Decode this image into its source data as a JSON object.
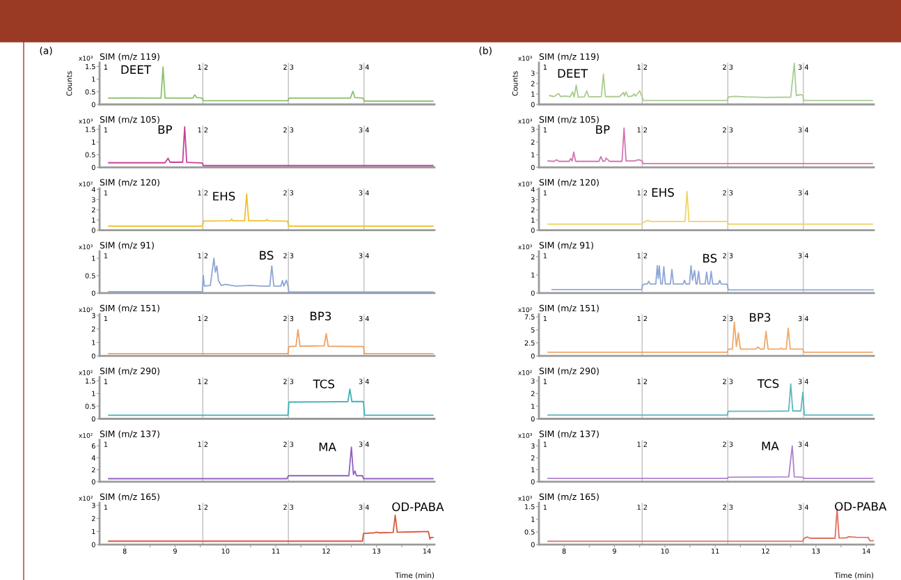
{
  "chart_data": [
    {
      "type": "line",
      "title": "SIM (m/z 119)",
      "ylabel": "Counts",
      "color": "#8cc06c",
      "xlim": [
        7.5,
        14.15
      ],
      "ylim": [
        0,
        1.65
      ],
      "yticks": [
        0,
        0.5,
        1,
        1.5
      ],
      "tick_labels": "y",
      "x": [
        7.68,
        8.0,
        8.72,
        8.76,
        8.8,
        9.35,
        9.39,
        9.43,
        9.54,
        9.56,
        11.24,
        11.26,
        12.48,
        12.53,
        12.57,
        12.73,
        12.76,
        14.12
      ],
      "values": [
        0.25,
        0.26,
        0.25,
        1.48,
        0.25,
        0.25,
        0.38,
        0.27,
        0.25,
        0.15,
        0.15,
        0.25,
        0.25,
        0.52,
        0.27,
        0.25,
        0.13,
        0.13
      ],
      "ref_lines": [
        {
          "axis": "x",
          "value": 9.55
        },
        {
          "axis": "x",
          "value": 11.25
        },
        {
          "axis": "x",
          "value": 12.75
        }
      ],
      "annotations": [
        "(a)",
        "x10³",
        "1",
        "1 2",
        "2 3",
        "3 4",
        "DEET"
      ]
    },
    {
      "type": "line",
      "title": "SIM (m/z 105)",
      "color": "#c8409a",
      "xlim": [
        7.5,
        14.15
      ],
      "ylim": [
        0,
        1.65
      ],
      "yticks": [
        0,
        0.5,
        1,
        1.5
      ],
      "tick_labels": "y",
      "x": [
        7.68,
        8.8,
        8.86,
        8.9,
        9.15,
        9.19,
        9.23,
        9.54,
        9.56,
        14.12
      ],
      "values": [
        0.18,
        0.18,
        0.36,
        0.2,
        0.2,
        1.6,
        0.2,
        0.17,
        0.07,
        0.07
      ],
      "ref_lines": [
        {
          "axis": "x",
          "value": 9.55
        },
        {
          "axis": "x",
          "value": 11.25
        },
        {
          "axis": "x",
          "value": 12.75
        }
      ],
      "annotations": [
        "x10³",
        "1",
        "1 2",
        "2 3",
        "3 4",
        "BP"
      ]
    },
    {
      "type": "line",
      "title": "SIM (m/z 120)",
      "color": "#f2c12e",
      "xlim": [
        7.5,
        14.15
      ],
      "ylim": [
        0,
        4.1
      ],
      "yticks": [
        0,
        1,
        2,
        3,
        4
      ],
      "tick_labels": "y",
      "x": [
        7.68,
        9.54,
        9.57,
        10.1,
        10.12,
        10.15,
        10.38,
        10.42,
        10.46,
        10.8,
        10.82,
        10.85,
        11.23,
        11.26,
        14.12
      ],
      "values": [
        0.4,
        0.4,
        0.9,
        0.92,
        1.1,
        0.92,
        0.92,
        3.55,
        0.92,
        0.92,
        1.05,
        0.92,
        0.88,
        0.4,
        0.4
      ],
      "ref_lines": [
        {
          "axis": "x",
          "value": 9.55
        },
        {
          "axis": "x",
          "value": 11.25
        },
        {
          "axis": "x",
          "value": 12.75
        }
      ],
      "annotations": [
        "x10²",
        "1",
        "1 2",
        "2 3",
        "3 4",
        "EHS"
      ]
    },
    {
      "type": "line",
      "title": "SIM (m/z 91)",
      "color": "#8ea6d6",
      "xlim": [
        7.5,
        14.15
      ],
      "ylim": [
        0,
        1.2
      ],
      "yticks": [
        0,
        0.5,
        1
      ],
      "tick_labels": "y",
      "x": [
        7.68,
        9.54,
        9.56,
        9.58,
        9.7,
        9.77,
        9.8,
        9.83,
        9.86,
        9.92,
        10.0,
        10.2,
        10.5,
        10.7,
        10.88,
        10.92,
        10.96,
        11.1,
        11.13,
        11.16,
        11.21,
        11.24,
        11.26,
        14.12
      ],
      "values": [
        0.04,
        0.04,
        0.5,
        0.2,
        0.22,
        1.0,
        0.6,
        0.78,
        0.35,
        0.22,
        0.25,
        0.2,
        0.22,
        0.2,
        0.2,
        0.78,
        0.2,
        0.2,
        0.36,
        0.2,
        0.37,
        0.2,
        0.03,
        0.03
      ],
      "ref_lines": [
        {
          "axis": "x",
          "value": 9.55
        },
        {
          "axis": "x",
          "value": 11.25
        },
        {
          "axis": "x",
          "value": 12.75
        }
      ],
      "annotations": [
        "x10³",
        "1",
        "1 2",
        "2 3",
        "3 4",
        "BS"
      ]
    },
    {
      "type": "line",
      "title": "SIM (m/z 151)",
      "color": "#f0a060",
      "xlim": [
        7.5,
        14.15
      ],
      "ylim": [
        0,
        3.1
      ],
      "yticks": [
        0,
        1,
        2,
        3
      ],
      "tick_labels": "y",
      "x": [
        7.68,
        11.24,
        11.26,
        11.4,
        11.44,
        11.48,
        11.96,
        12.0,
        12.04,
        12.74,
        12.76,
        14.12
      ],
      "values": [
        0.17,
        0.17,
        0.7,
        0.72,
        1.95,
        0.72,
        0.75,
        1.65,
        0.72,
        0.7,
        0.17,
        0.17
      ],
      "ref_lines": [
        {
          "axis": "x",
          "value": 9.55
        },
        {
          "axis": "x",
          "value": 11.25
        },
        {
          "axis": "x",
          "value": 12.75
        }
      ],
      "annotations": [
        "x10²",
        "1",
        "1 2",
        "2 3",
        "3 4",
        "BP3"
      ]
    },
    {
      "type": "line",
      "title": "SIM (m/z 290)",
      "color": "#3fb0b8",
      "xlim": [
        7.5,
        14.15
      ],
      "ylim": [
        0,
        1.65
      ],
      "yticks": [
        0,
        0.5,
        1,
        1.5
      ],
      "tick_labels": "y",
      "x": [
        7.68,
        11.24,
        11.26,
        12.0,
        12.43,
        12.47,
        12.51,
        12.74,
        12.76,
        14.12
      ],
      "values": [
        0.14,
        0.14,
        0.66,
        0.67,
        0.68,
        1.17,
        0.68,
        0.68,
        0.14,
        0.14
      ],
      "ref_lines": [
        {
          "axis": "x",
          "value": 9.55
        },
        {
          "axis": "x",
          "value": 11.25
        },
        {
          "axis": "x",
          "value": 12.75
        }
      ],
      "annotations": [
        "x10²",
        "1",
        "1 2",
        "2 3",
        "3 4",
        "TCS"
      ]
    },
    {
      "type": "line",
      "title": "SIM (m/z 137)",
      "color": "#9060c0",
      "xlim": [
        7.5,
        14.15
      ],
      "ylim": [
        0,
        7
      ],
      "yticks": [
        0,
        2,
        4,
        6
      ],
      "tick_labels": "y",
      "x": [
        7.68,
        11.22,
        11.25,
        12.45,
        12.5,
        12.54,
        12.57,
        12.6,
        12.72,
        12.74,
        14.12
      ],
      "values": [
        0.5,
        0.5,
        1.0,
        1.0,
        5.8,
        1.2,
        1.8,
        1.0,
        1.0,
        0.5,
        0.5
      ],
      "ref_lines": [
        {
          "axis": "x",
          "value": 9.55
        },
        {
          "axis": "x",
          "value": 11.25
        },
        {
          "axis": "x",
          "value": 12.75
        }
      ],
      "annotations": [
        "x10²",
        "1",
        "1 2",
        "2 3",
        "3 4",
        "MA"
      ]
    },
    {
      "type": "line",
      "title": "SIM (m/z 165)",
      "xlabel": "Time (min)",
      "color": "#d85a40",
      "xlim": [
        7.5,
        14.15
      ],
      "ylim": [
        0,
        3.2
      ],
      "yticks": [
        0,
        1,
        2,
        3
      ],
      "xticks": [
        8,
        {
          "value": 8.5,
          "label": null
        },
        9,
        {
          "value": 9.5,
          "label": null
        },
        10,
        {
          "value": 10.5,
          "label": null
        },
        11,
        {
          "value": 11.5,
          "label": null
        },
        12,
        {
          "value": 12.5,
          "label": null
        },
        13,
        {
          "value": 13.5,
          "label": null
        },
        14
      ],
      "x": [
        7.68,
        12.72,
        12.74,
        12.95,
        13.0,
        13.05,
        13.33,
        13.37,
        13.41,
        13.8,
        14.03,
        14.06,
        14.08,
        14.12
      ],
      "values": [
        0.26,
        0.26,
        0.85,
        0.9,
        0.95,
        0.9,
        0.93,
        2.25,
        0.95,
        0.98,
        1.0,
        0.42,
        0.55,
        0.55
      ],
      "ref_lines": [
        {
          "axis": "x",
          "value": 9.55
        },
        {
          "axis": "x",
          "value": 11.25
        },
        {
          "axis": "x",
          "value": 12.75
        }
      ],
      "annotations": [
        "x10²",
        "1",
        "1 2",
        "2 3",
        "3 4",
        "OD-PABA"
      ]
    },
    {
      "type": "line",
      "title": "SIM (m/z 119)",
      "ylabel": "Counts",
      "color": "#a9cc90",
      "xlim": [
        7.5,
        14.15
      ],
      "ylim": [
        0,
        4
      ],
      "yticks": [
        0,
        1,
        2,
        3
      ],
      "tick_labels": "y",
      "x": [
        7.71,
        7.8,
        7.89,
        7.93,
        8.0,
        8.12,
        8.17,
        8.2,
        8.24,
        8.28,
        8.4,
        8.45,
        8.49,
        8.74,
        8.78,
        8.82,
        9.1,
        9.18,
        9.2,
        9.23,
        9.27,
        9.35,
        9.39,
        9.42,
        9.5,
        9.56,
        9.57,
        11.24,
        11.26,
        11.4,
        11.6,
        12.0,
        12.5,
        12.57,
        12.61,
        12.7,
        12.74,
        12.76,
        14.12
      ],
      "values": [
        0.85,
        0.75,
        1.05,
        0.75,
        0.8,
        0.75,
        1.2,
        0.7,
        1.85,
        0.7,
        0.72,
        1.3,
        0.72,
        0.75,
        2.9,
        0.75,
        0.75,
        1.15,
        0.8,
        1.2,
        0.75,
        0.8,
        1.0,
        0.8,
        1.3,
        0.6,
        0.37,
        0.37,
        0.72,
        0.78,
        0.72,
        0.68,
        0.7,
        3.95,
        0.85,
        0.95,
        0.85,
        0.37,
        0.37
      ],
      "ref_lines": [
        {
          "axis": "x",
          "value": 9.55
        },
        {
          "axis": "x",
          "value": 11.25
        },
        {
          "axis": "x",
          "value": 12.75
        }
      ],
      "annotations": [
        "(b)",
        "x10³",
        "1",
        "1 2",
        "2 3",
        "3 4",
        "DEET"
      ]
    },
    {
      "type": "line",
      "title": "SIM (m/z 105)",
      "color": "#d275b2",
      "xlim": [
        7.5,
        14.15
      ],
      "ylim": [
        0,
        3.3
      ],
      "yticks": [
        0,
        1,
        2,
        3
      ],
      "tick_labels": "y",
      "x": [
        7.68,
        7.8,
        7.85,
        7.9,
        8.1,
        8.13,
        8.16,
        8.19,
        8.23,
        8.69,
        8.73,
        8.77,
        8.81,
        8.83,
        8.87,
        8.9,
        9.15,
        9.19,
        9.23,
        9.4,
        9.48,
        9.55,
        9.57,
        14.12
      ],
      "values": [
        0.5,
        0.47,
        0.6,
        0.47,
        0.47,
        0.7,
        0.5,
        1.2,
        0.47,
        0.47,
        0.85,
        0.47,
        0.5,
        0.72,
        0.6,
        0.47,
        0.47,
        3.1,
        0.5,
        0.5,
        0.6,
        0.5,
        0.3,
        0.3
      ],
      "ref_lines": [
        {
          "axis": "x",
          "value": 9.55
        },
        {
          "axis": "x",
          "value": 11.25
        },
        {
          "axis": "x",
          "value": 12.75
        }
      ],
      "annotations": [
        "x10³",
        "1",
        "1 2",
        "2 3",
        "3 4",
        "BP"
      ]
    },
    {
      "type": "line",
      "title": "SIM (m/z 120)",
      "color": "#f0d462",
      "xlim": [
        7.5,
        14.15
      ],
      "ylim": [
        0,
        4.1
      ],
      "yticks": [
        0,
        1,
        2,
        3,
        4
      ],
      "tick_labels": "y",
      "x": [
        7.68,
        9.54,
        9.57,
        9.66,
        9.72,
        10.4,
        10.44,
        10.48,
        11.24,
        11.26,
        14.12
      ],
      "values": [
        0.6,
        0.6,
        0.75,
        0.95,
        0.85,
        0.85,
        3.8,
        0.85,
        0.85,
        0.6,
        0.6
      ],
      "ref_lines": [
        {
          "axis": "x",
          "value": 9.55
        },
        {
          "axis": "x",
          "value": 11.25
        },
        {
          "axis": "x",
          "value": 12.75
        }
      ],
      "annotations": [
        "x10³",
        "1",
        "1 2",
        "2 3",
        "3 4",
        "EHS"
      ]
    },
    {
      "type": "line",
      "title": "SIM (m/z 91)",
      "color": "#8ea6d6",
      "xlim": [
        7.5,
        14.15
      ],
      "ylim": [
        0,
        2.3
      ],
      "yticks": [
        0,
        1,
        2
      ],
      "tick_labels": "y",
      "x": [
        7.76,
        9.54,
        9.56,
        9.6,
        9.65,
        9.68,
        9.71,
        9.82,
        9.85,
        9.87,
        9.89,
        9.92,
        9.95,
        9.98,
        10.01,
        10.11,
        10.14,
        10.17,
        10.36,
        10.39,
        10.42,
        10.49,
        10.52,
        10.55,
        10.59,
        10.62,
        10.64,
        10.67,
        10.7,
        10.8,
        10.83,
        10.86,
        10.89,
        10.92,
        10.95,
        11.06,
        11.09,
        11.12,
        11.24,
        11.26,
        14.15
      ],
      "values": [
        0.19,
        0.19,
        0.45,
        0.5,
        0.5,
        0.65,
        0.5,
        0.5,
        1.5,
        0.8,
        1.5,
        0.5,
        0.5,
        1.45,
        0.5,
        0.5,
        1.3,
        0.5,
        0.5,
        0.7,
        0.5,
        0.5,
        1.5,
        0.7,
        1.25,
        0.5,
        0.5,
        1.2,
        0.5,
        0.5,
        1.15,
        0.5,
        0.5,
        1.2,
        0.5,
        0.5,
        0.7,
        0.5,
        0.48,
        0.17,
        0.17
      ],
      "ref_lines": [
        {
          "axis": "x",
          "value": 9.55
        },
        {
          "axis": "x",
          "value": 11.25
        },
        {
          "axis": "x",
          "value": 12.75
        }
      ],
      "annotations": [
        "x10³",
        "1",
        "1 2",
        "2 3",
        "3 4",
        "BS"
      ]
    },
    {
      "type": "line",
      "title": "SIM (m/z 151)",
      "color": "#f0a868",
      "xlim": [
        7.5,
        14.15
      ],
      "ylim": [
        0,
        8
      ],
      "yticks": [
        0,
        2.5,
        5,
        7.5
      ],
      "tick_labels": "y",
      "x": [
        7.68,
        11.24,
        11.26,
        11.34,
        11.38,
        11.42,
        11.46,
        11.5,
        11.8,
        11.85,
        11.9,
        11.97,
        12.01,
        12.05,
        12.28,
        12.31,
        12.34,
        12.41,
        12.45,
        12.49,
        12.74,
        12.76,
        14.12
      ],
      "values": [
        0.7,
        0.7,
        1.3,
        1.3,
        6.5,
        1.8,
        4.4,
        1.3,
        1.3,
        1.7,
        1.3,
        1.3,
        4.7,
        1.3,
        1.3,
        1.5,
        1.3,
        1.3,
        5.3,
        1.3,
        1.3,
        0.7,
        0.7
      ],
      "ref_lines": [
        {
          "axis": "x",
          "value": 9.55
        },
        {
          "axis": "x",
          "value": 11.25
        },
        {
          "axis": "x",
          "value": 12.75
        }
      ],
      "annotations": [
        "x10²",
        "1",
        "1 2",
        "2 3",
        "3 4",
        "BP3"
      ]
    },
    {
      "type": "line",
      "title": "SIM (m/z 290)",
      "color": "#5cb8c0",
      "xlim": [
        7.5,
        14.15
      ],
      "ylim": [
        0,
        3.3
      ],
      "yticks": [
        0,
        1,
        2,
        3
      ],
      "tick_labels": "y",
      "x": [
        7.68,
        11.24,
        11.26,
        12.0,
        12.46,
        12.5,
        12.54,
        12.7,
        12.74,
        12.77,
        14.12
      ],
      "values": [
        0.3,
        0.3,
        0.6,
        0.6,
        0.62,
        2.75,
        0.62,
        0.62,
        2.1,
        0.3,
        0.3
      ],
      "ref_lines": [
        {
          "axis": "x",
          "value": 9.55
        },
        {
          "axis": "x",
          "value": 11.25
        },
        {
          "axis": "x",
          "value": 12.75
        }
      ],
      "annotations": [
        "x10²",
        "1",
        "1 2",
        "2 3",
        "3 4",
        "TCS"
      ]
    },
    {
      "type": "line",
      "title": "SIM (m/z 137)",
      "color": "#b080d0",
      "xlim": [
        7.5,
        14.15
      ],
      "ylim": [
        0,
        3.5
      ],
      "yticks": [
        0,
        1,
        2,
        3
      ],
      "tick_labels": "y",
      "x": [
        7.68,
        11.24,
        11.26,
        12.46,
        12.53,
        12.57,
        12.74,
        12.76,
        14.12
      ],
      "values": [
        0.27,
        0.27,
        0.37,
        0.4,
        3.0,
        0.4,
        0.38,
        0.27,
        0.27
      ],
      "ref_lines": [
        {
          "axis": "x",
          "value": 9.55
        },
        {
          "axis": "x",
          "value": 11.25
        },
        {
          "axis": "x",
          "value": 12.75
        }
      ],
      "annotations": [
        "x10³",
        "1",
        "1 2",
        "2 3",
        "3 4",
        "MA"
      ]
    },
    {
      "type": "line",
      "title": "SIM (m/z 165)",
      "xlabel": "Time (min)",
      "color": "#e07060",
      "xlim": [
        7.5,
        14.15
      ],
      "ylim": [
        0,
        1.65
      ],
      "yticks": [
        0,
        0.5,
        1,
        1.5
      ],
      "xticks": [
        8,
        {
          "value": 8.5,
          "label": null
        },
        9,
        {
          "value": 9.5,
          "label": null
        },
        10,
        {
          "value": 10.5,
          "label": null
        },
        11,
        {
          "value": 11.5,
          "label": null
        },
        12,
        {
          "value": 12.5,
          "label": null
        },
        13,
        {
          "value": 13.5,
          "label": null
        },
        14
      ],
      "x": [
        7.68,
        12.74,
        12.76,
        12.83,
        12.88,
        13.38,
        13.42,
        13.46,
        13.6,
        13.65,
        13.8,
        14.04,
        14.07,
        14.15
      ],
      "values": [
        0.13,
        0.13,
        0.24,
        0.3,
        0.25,
        0.25,
        1.4,
        0.26,
        0.26,
        0.31,
        0.29,
        0.28,
        0.15,
        0.15
      ],
      "ref_lines": [
        {
          "axis": "x",
          "value": 9.55
        },
        {
          "axis": "x",
          "value": 11.25
        },
        {
          "axis": "x",
          "value": 12.75
        }
      ],
      "annotations": [
        "x10³",
        "1",
        "1 2",
        "2 3",
        "3 4",
        "OD-PABA"
      ]
    }
  ]
}
